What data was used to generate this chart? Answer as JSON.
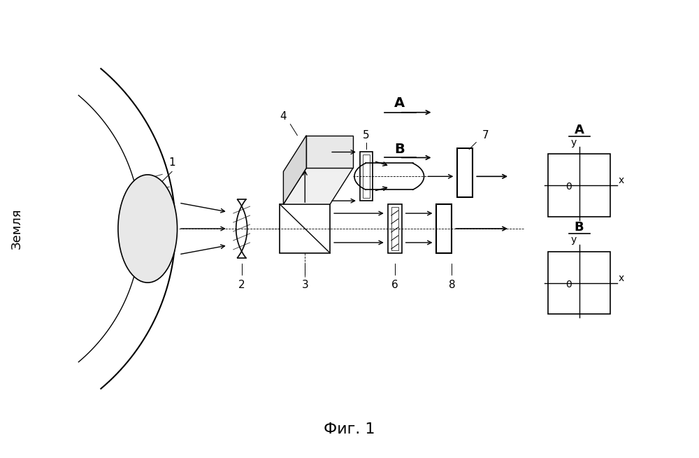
{
  "bg_color": "#ffffff",
  "line_color": "#000000",
  "fig_caption": "Фиг. 1",
  "earth_label": "Земля",
  "view_A_label": "A",
  "view_B_label": "B",
  "component_labels": [
    "1",
    "2",
    "3",
    "4",
    "5",
    "6",
    "7",
    "8"
  ],
  "axis_label_0": "0",
  "axis_x": "x",
  "axis_y": "y"
}
